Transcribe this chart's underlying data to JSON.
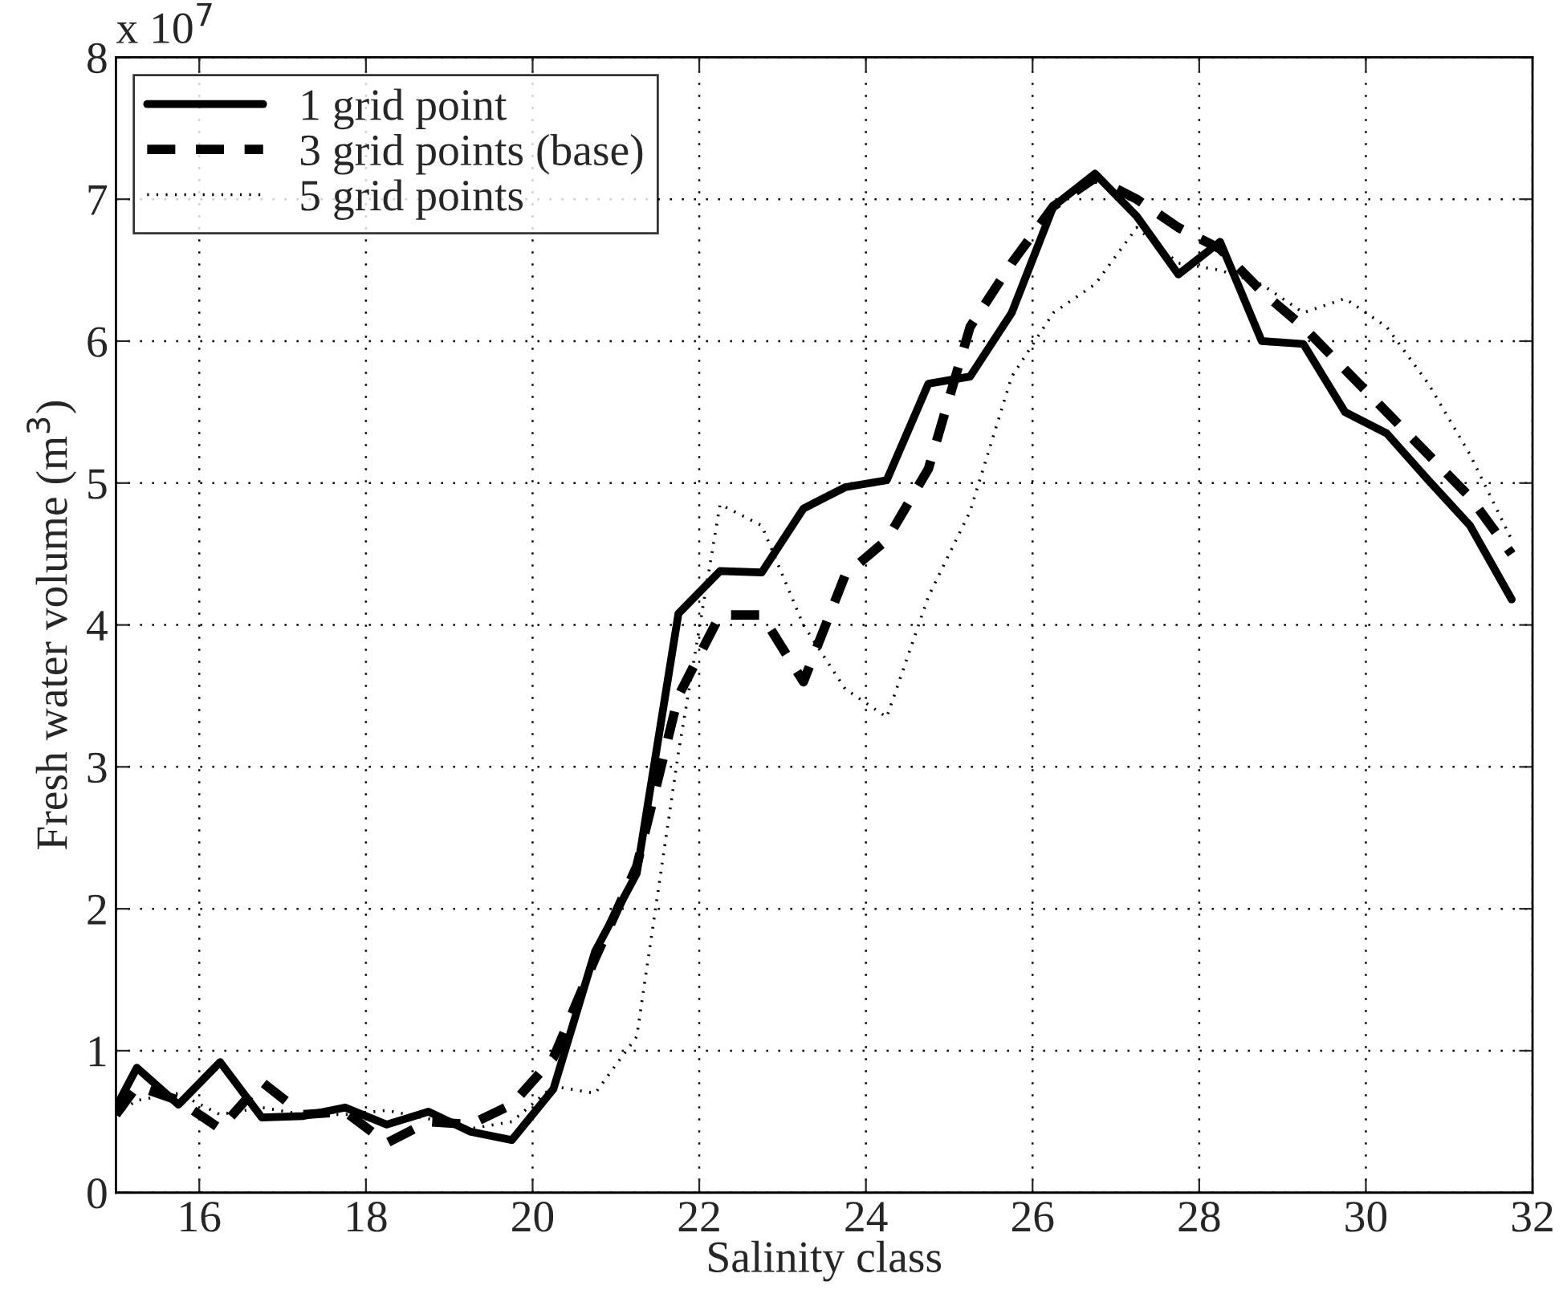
{
  "chart_data": {
    "type": "line",
    "xlabel": "Salinity class",
    "ylabel": "Fresh water volume (m$^{3}$)",
    "annotations": [
      "x 10$^{7}$"
    ],
    "xlim": [
      15,
      32
    ],
    "xticks": [
      16,
      18,
      20,
      22,
      24,
      26,
      28,
      30,
      32
    ],
    "ylim": [
      0,
      8
    ],
    "yticks": [
      0,
      1,
      2,
      3,
      4,
      5,
      6,
      7,
      8
    ],
    "grid": true,
    "legend": "top left",
    "marker": "none",
    "x": [
      15,
      15.25,
      15.75,
      16.25,
      16.75,
      17.25,
      17.75,
      18.25,
      18.75,
      19.25,
      19.75,
      20.25,
      20.75,
      21.25,
      21.75,
      22.25,
      22.75,
      23.25,
      23.75,
      24.25,
      24.75,
      25.25,
      25.75,
      26.25,
      26.75,
      27.25,
      27.75,
      28.25,
      28.75,
      29.25,
      29.75,
      30.25,
      30.75,
      31.25,
      31.75
    ],
    "series": [
      {
        "name": "1 grid point",
        "color": "#000000",
        "line_style": "solid",
        "values": [
          0.6,
          0.88,
          0.62,
          0.92,
          0.53,
          0.54,
          0.6,
          0.48,
          0.57,
          0.43,
          0.37,
          0.73,
          1.7,
          2.25,
          4.08,
          4.38,
          4.37,
          4.82,
          4.97,
          5.02,
          5.7,
          5.75,
          6.2,
          6.95,
          7.18,
          6.88,
          6.47,
          6.7,
          6.0,
          5.98,
          5.5,
          5.35,
          5.02,
          4.7,
          4.18
        ]
      },
      {
        "name": "3 grid points (base)",
        "color": "#000000",
        "line_style": "dashed",
        "values": [
          0.55,
          0.75,
          0.65,
          0.45,
          0.78,
          0.55,
          0.57,
          0.35,
          0.5,
          0.48,
          0.62,
          0.95,
          1.65,
          2.3,
          3.5,
          4.07,
          4.07,
          3.6,
          4.35,
          4.6,
          5.1,
          6.1,
          6.55,
          6.95,
          7.15,
          7.0,
          6.8,
          6.65,
          6.35,
          6.1,
          5.8,
          5.5,
          5.2,
          4.9,
          4.5
        ]
      },
      {
        "name": "5 grid points",
        "color": "#000000",
        "line_style": "dotted",
        "values": [
          0.55,
          0.65,
          0.7,
          0.55,
          0.6,
          0.55,
          0.55,
          0.58,
          0.52,
          0.45,
          0.5,
          0.75,
          0.7,
          1.1,
          3.1,
          4.85,
          4.7,
          4.0,
          3.55,
          3.35,
          4.2,
          4.8,
          5.75,
          6.2,
          6.4,
          6.8,
          6.55,
          6.5,
          6.4,
          6.2,
          6.3,
          6.1,
          5.7,
          5.2,
          4.6
        ]
      }
    ]
  }
}
